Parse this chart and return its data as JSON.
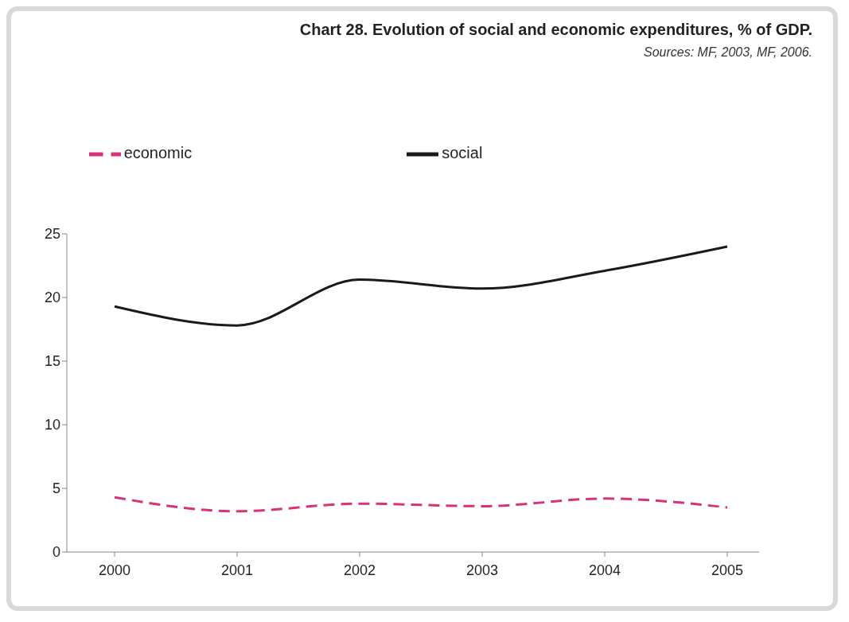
{
  "chart_data": {
    "type": "line",
    "title": "Chart 28. Evolution of social and economic expenditures, % of GDP.",
    "annotations": [
      "Sources: MF, 2003, MF, 2006."
    ],
    "categories": [
      "2000",
      "2001",
      "2002",
      "2003",
      "2004",
      "2005"
    ],
    "series": [
      {
        "name": "social",
        "color": "#1a1a1a",
        "values": [
          19.3,
          17.8,
          21.4,
          20.7,
          22.1,
          24
        ],
        "line_style": "solid"
      },
      {
        "name": "economic",
        "color": "#d6337a",
        "values": [
          4.3,
          3.2,
          3.8,
          3.6,
          4.2,
          3.5
        ],
        "line_style": "dashed"
      }
    ],
    "ylim": [
      0,
      25
    ],
    "yticks": [
      0,
      5,
      10,
      15,
      20,
      25
    ],
    "grid": false,
    "legend": "top",
    "marker": "none"
  }
}
